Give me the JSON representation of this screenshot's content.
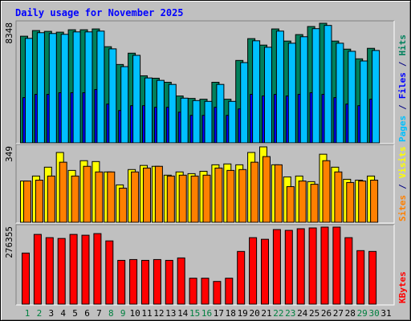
{
  "title": "Daily usage for November 2025",
  "legend_separator": "/",
  "chart_data": [
    {
      "type": "bar",
      "ylim": [
        0,
        8348
      ],
      "yticks": [
        8348
      ],
      "series": [
        {
          "name": "Hits",
          "color": "#00805c",
          "values": [
            7445,
            7840,
            7783,
            7727,
            7896,
            7896,
            7952,
            6712,
            5471,
            6260,
            4681,
            4512,
            4230,
            3271,
            3102,
            3046,
            4230,
            3046,
            5753,
            7276,
            6824,
            7952,
            7106,
            7558,
            8122,
            8348,
            7106,
            6542,
            5866,
            6599,
            null
          ]
        },
        {
          "name": "Files",
          "color": "#0000ff",
          "values": [
            3158,
            3384,
            3384,
            3497,
            3497,
            3497,
            3722,
            2707,
            2256,
            2594,
            2594,
            2482,
            2482,
            2143,
            1918,
            1918,
            2482,
            1918,
            2369,
            3384,
            3271,
            3384,
            3271,
            3384,
            3497,
            3384,
            3158,
            2707,
            2594,
            3046,
            null
          ]
        },
        {
          "name": "Pages",
          "color": "#00c0ff",
          "values": [
            7295,
            7690,
            7633,
            7577,
            7746,
            7746,
            7802,
            6562,
            5321,
            6110,
            4531,
            4362,
            4080,
            3121,
            2952,
            2896,
            4080,
            2896,
            5603,
            7126,
            6674,
            7802,
            6956,
            7408,
            7972,
            8198,
            6956,
            6392,
            5716,
            6449,
            null
          ]
        }
      ]
    },
    {
      "type": "bar",
      "ylim": [
        0,
        349
      ],
      "yticks": [
        349
      ],
      "series": [
        {
          "name": "Visits",
          "color": "#ffff00",
          "values": [
            191,
            214,
            255,
            323,
            240,
            285,
            281,
            233,
            173,
            244,
            263,
            259,
            218,
            233,
            225,
            236,
            266,
            270,
            266,
            323,
            349,
            266,
            210,
            214,
            188,
            315,
            255,
            199,
            195,
            214,
            null
          ]
        },
        {
          "name": "Sites",
          "color": "#ff8000",
          "values": [
            191,
            195,
            214,
            278,
            214,
            259,
            233,
            233,
            158,
            233,
            251,
            259,
            214,
            218,
            214,
            218,
            251,
            240,
            244,
            278,
            304,
            266,
            165,
            191,
            176,
            285,
            233,
            184,
            191,
            195,
            null
          ]
        }
      ]
    },
    {
      "type": "bar",
      "ylim": [
        0,
        276355
      ],
      "yticks": [
        276355
      ],
      "categories": [
        "1",
        "2",
        "3",
        "4",
        "5",
        "6",
        "7",
        "8",
        "9",
        "10",
        "11",
        "12",
        "13",
        "14",
        "15",
        "16",
        "17",
        "18",
        "19",
        "20",
        "21",
        "22",
        "23",
        "24",
        "25",
        "26",
        "27",
        "28",
        "29",
        "30",
        "31"
      ],
      "category_colors": [
        "#008040",
        "#008040",
        "#000000",
        "#000000",
        "#000000",
        "#000000",
        "#000000",
        "#008040",
        "#008040",
        "#000000",
        "#000000",
        "#000000",
        "#000000",
        "#000000",
        "#008040",
        "#008040",
        "#000000",
        "#000000",
        "#000000",
        "#000000",
        "#000000",
        "#008040",
        "#008040",
        "#000000",
        "#000000",
        "#000000",
        "#000000",
        "#000000",
        "#008040",
        "#008040",
        "#000000"
      ],
      "series": [
        {
          "name": "KBytes",
          "color": "#ff0000",
          "values": [
            183267,
            250174,
            238538,
            235629,
            250174,
            247265,
            253083,
            226902,
            157086,
            159995,
            157086,
            159995,
            157086,
            165813,
            93088,
            93088,
            81452,
            93088,
            189085,
            238538,
            232720,
            267628,
            264719,
            270537,
            273446,
            276355,
            276355,
            238538,
            191994,
            189085,
            null
          ]
        }
      ]
    }
  ]
}
